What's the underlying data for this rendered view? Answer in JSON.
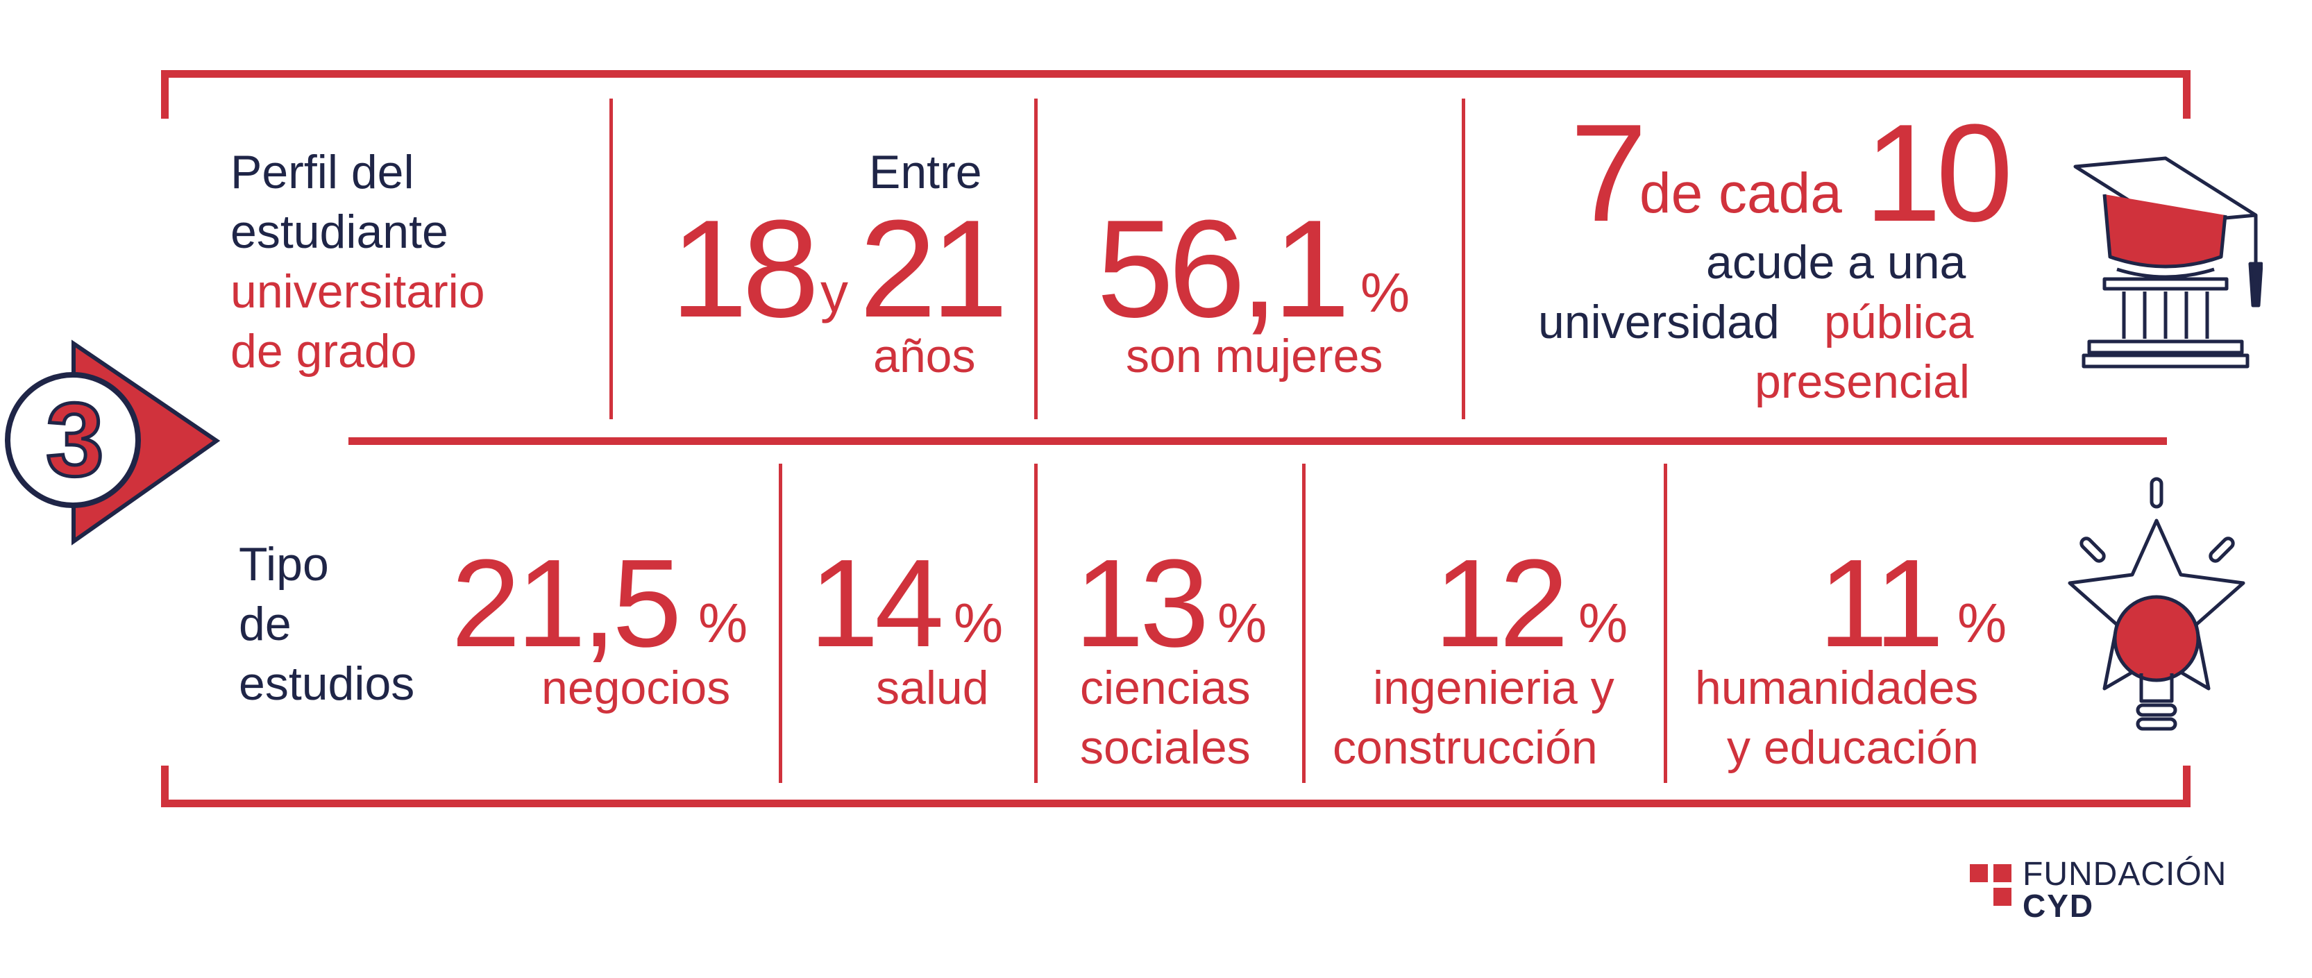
{
  "colors": {
    "accent": "#d0323c",
    "navy": "#1f2547"
  },
  "section": {
    "number": "3"
  },
  "perfil": {
    "title_line1": "Perfil del",
    "title_line2": "estudiante",
    "title_line3": "universitario",
    "title_line4": "de grado"
  },
  "edad": {
    "entre": "Entre",
    "n1": "18",
    "y": "y",
    "n2": "21",
    "unit": "años"
  },
  "mujeres": {
    "value": "56,1",
    "pct": "%",
    "label": "son mujeres"
  },
  "publica": {
    "n1": "7",
    "de_cada": "de cada",
    "n2": "10",
    "line1": "acude a una",
    "line2a": "universidad",
    "line2b": "pública",
    "line3": "presencial"
  },
  "tipo": {
    "line1": "Tipo",
    "line2": "de",
    "line3": "estudios"
  },
  "estudios": [
    {
      "value": "21,5",
      "pct": "%",
      "label1": "negocios",
      "label2": ""
    },
    {
      "value": "14",
      "pct": "%",
      "label1": "salud",
      "label2": ""
    },
    {
      "value": "13",
      "pct": "%",
      "label1": "ciencias",
      "label2": "sociales"
    },
    {
      "value": "12",
      "pct": "%",
      "label1": "ingenieria y",
      "label2": "construcción"
    },
    {
      "value": "11",
      "pct": "%",
      "label1": "humanidades",
      "label2": "y educación"
    }
  ],
  "icons": {
    "top": "graduation-building-icon",
    "bottom": "star-lightbulb-icon"
  },
  "logo": {
    "line1": "FUNDACIÓN",
    "line2": "CYD"
  }
}
